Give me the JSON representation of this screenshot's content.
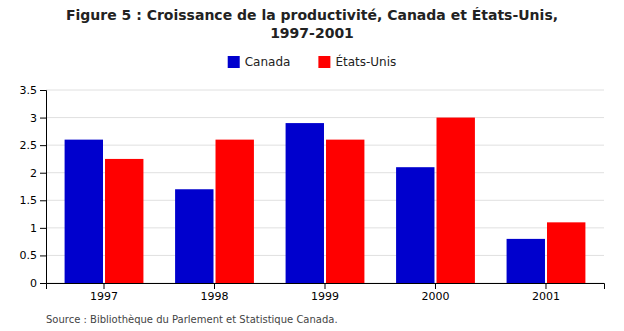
{
  "chart_data": {
    "type": "bar",
    "title": "Figure 5 : Croissance de la productivité, Canada et États-Unis,",
    "subtitle": "1997-2001",
    "categories": [
      "1997",
      "1998",
      "1999",
      "2000",
      "2001"
    ],
    "series": [
      {
        "name": "Canada",
        "color": "#0000CD",
        "values": [
          2.6,
          1.7,
          2.9,
          2.1,
          0.8
        ]
      },
      {
        "name": "États-Unis",
        "color": "#FF0000",
        "values": [
          2.25,
          2.6,
          2.6,
          3.0,
          1.1
        ]
      }
    ],
    "ylim": [
      0,
      3.5
    ],
    "yticks": [
      0,
      0.5,
      1,
      1.5,
      2,
      2.5,
      3,
      3.5
    ],
    "grid": true,
    "legend": "top",
    "annotations": [
      "Source : Bibliothèque du Parlement et Statistique Canada."
    ]
  }
}
